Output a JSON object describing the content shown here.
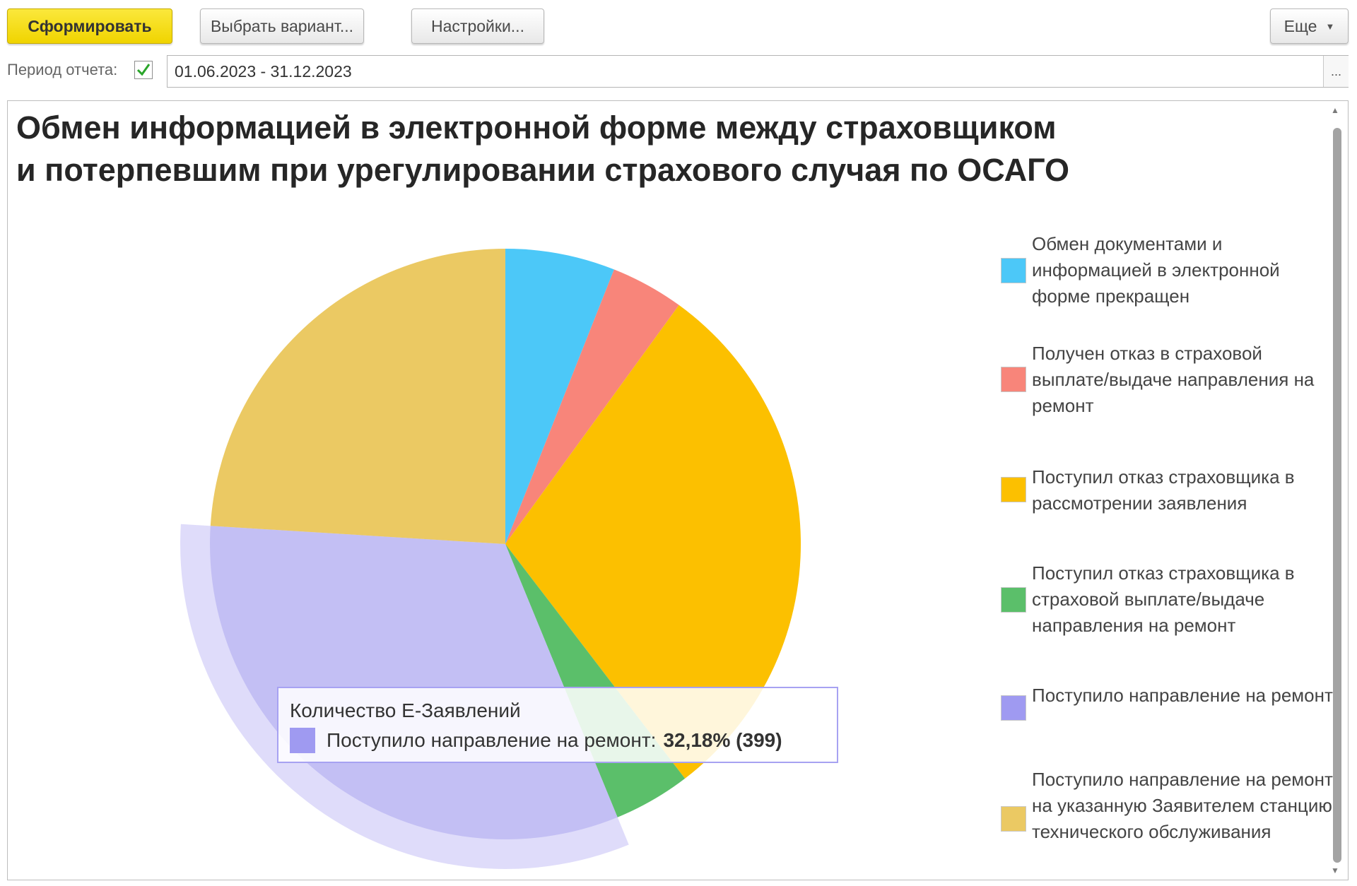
{
  "toolbar": {
    "generate_label": "Сформировать",
    "choose_variant_label": "Выбрать вариант...",
    "settings_label": "Настройки...",
    "more_label": "Еще"
  },
  "period": {
    "label": "Период отчета:",
    "checked": true,
    "value": "01.06.2023 - 31.12.2023",
    "select_button_label": "..."
  },
  "report": {
    "title_line1": "Обмен информацией в электронной форме между страховщиком",
    "title_line2": "и потерпевшим при урегулировании страхового случая по ОСАГО",
    "legend_items": [
      "Обмен документами и информацией в электронной форме прекращен",
      "Получен отказ в страховой выплате/выдаче направления на ремонт",
      "Поступил отказ страховщика в рассмотрении заявления",
      "Поступил отказ страховщика в страховой выплате/выдаче направления на ремонт",
      "Поступило направление на ремонт",
      "Поступило направление на ремонт на указанную Заявителем станцию технического обслуживания"
    ]
  },
  "tooltip": {
    "title": "Количество Е-Заявлений",
    "series": "Поступило направление на ремонт:",
    "value": "32,18% (399)",
    "color": "#9f9af1"
  },
  "chart_data": {
    "type": "pie",
    "title": "Обмен информацией в электронной форме между страховщиком и потерпевшим при урегулировании страхового случая по ОСАГО",
    "series_name": "Количество Е-Заявлений",
    "highlighted_index": 4,
    "slices": [
      {
        "label": "Обмен документами и информацией в электронной форме прекращен",
        "percent": 6.0,
        "color": "#4cc8f8"
      },
      {
        "label": "Получен отказ в страховой выплате/выдаче направления на ремонт",
        "percent": 4.0,
        "color": "#f8857a"
      },
      {
        "label": "Поступил отказ страховщика в рассмотрении заявления",
        "percent": 29.6,
        "color": "#fcc000"
      },
      {
        "label": "Поступил отказ страховщика в страховой выплате/выдаче направления на ремонт",
        "percent": 4.2,
        "color": "#5bbf6a"
      },
      {
        "label": "Поступило направление на ремонт",
        "percent": 32.18,
        "count": 399,
        "color": "#c3bff4"
      },
      {
        "label": "Поступило направление на ремонт на указанную Заявителем станцию технического обслуживания",
        "percent": 24.02,
        "color": "#ebc963"
      }
    ],
    "legend": "right"
  }
}
